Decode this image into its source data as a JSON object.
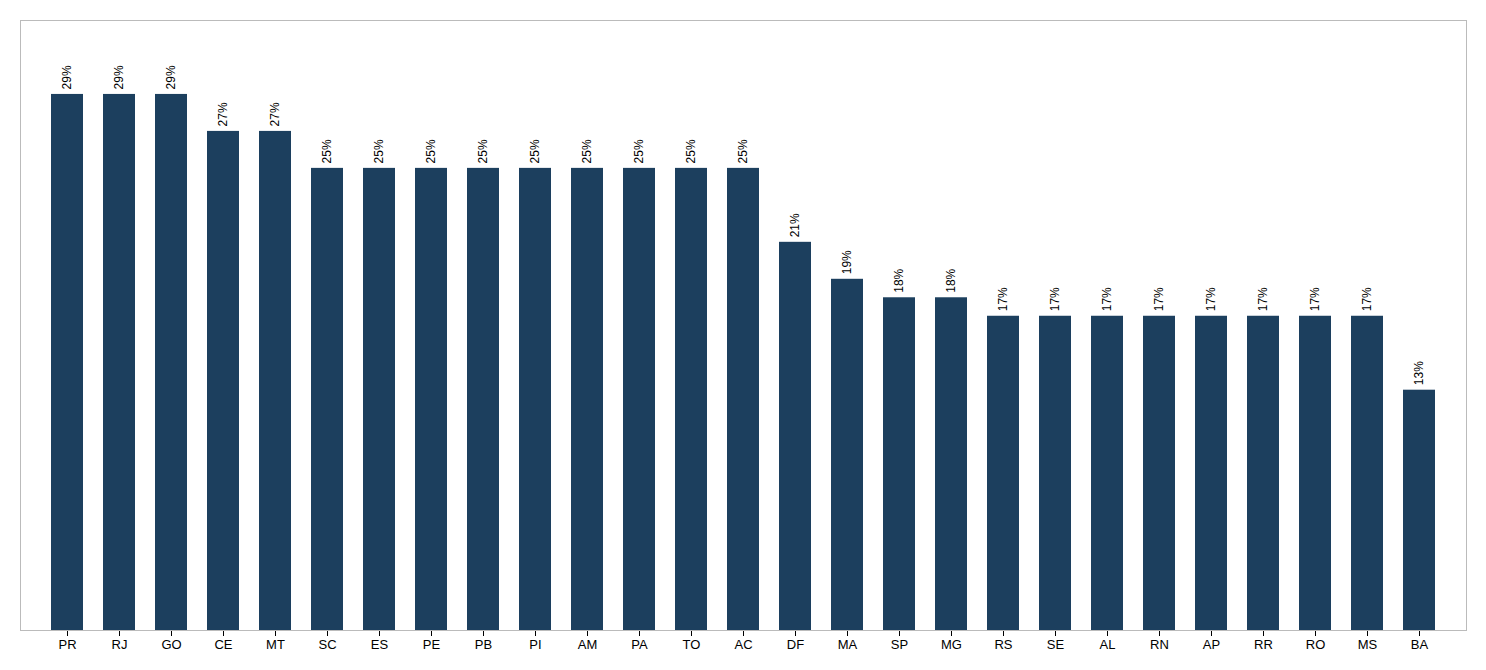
{
  "chart_data": {
    "type": "bar",
    "categories": [
      "PR",
      "RJ",
      "GO",
      "CE",
      "MT",
      "SC",
      "ES",
      "PE",
      "PB",
      "PI",
      "AM",
      "PA",
      "TO",
      "AC",
      "DF",
      "MA",
      "SP",
      "MG",
      "RS",
      "SE",
      "AL",
      "RN",
      "AP",
      "RR",
      "RO",
      "MS",
      "BA"
    ],
    "values": [
      29,
      29,
      29,
      27,
      27,
      25,
      25,
      25,
      25,
      25,
      25,
      25,
      25,
      25,
      21,
      19,
      18,
      18,
      17,
      17,
      17,
      17,
      17,
      17,
      17,
      17,
      13
    ],
    "value_labels": [
      "29%",
      "29%",
      "29%",
      "27%",
      "27%",
      "25%",
      "25%",
      "25%",
      "25%",
      "25%",
      "25%",
      "25%",
      "25%",
      "25%",
      "21%",
      "19%",
      "18%",
      "18%",
      "17%",
      "17%",
      "17%",
      "17%",
      "17%",
      "17%",
      "17%",
      "17%",
      "13%"
    ],
    "color": "#1C3F5E",
    "ylim": [
      0,
      33
    ],
    "data_labels": true,
    "tick_labels": "x",
    "grid": false
  }
}
